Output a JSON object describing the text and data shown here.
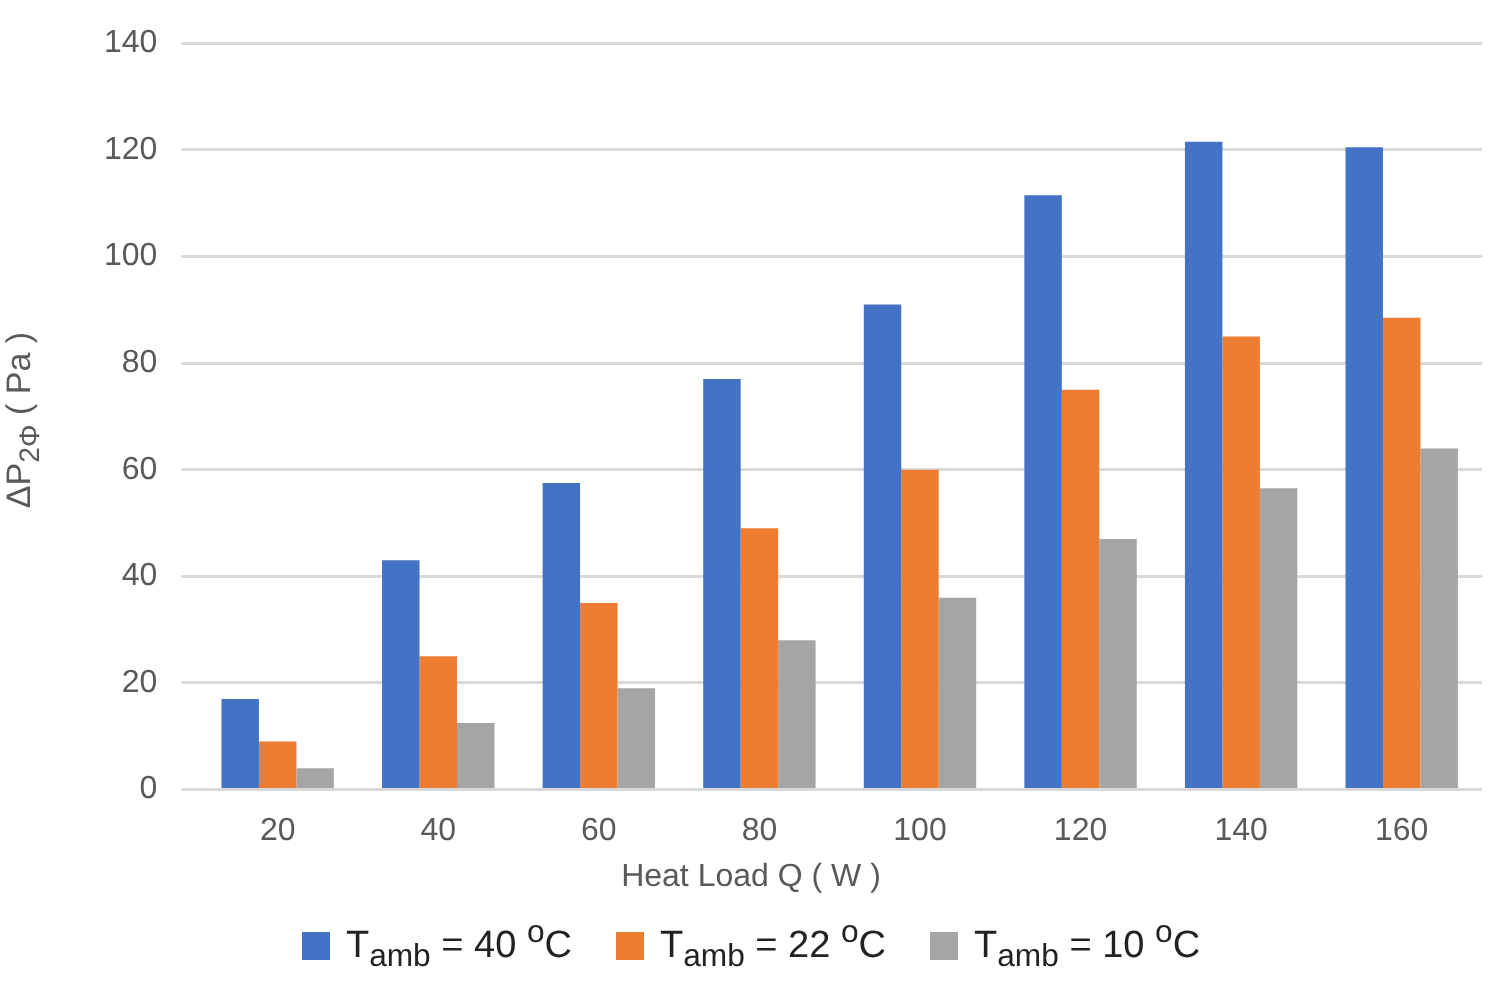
{
  "chart_data": {
    "type": "bar",
    "xlabel": "Heat Load Q ( W )",
    "ylabel": "ΔP$_{2Φ}$ ( Pa )",
    "categories": [
      "20",
      "40",
      "60",
      "80",
      "100",
      "120",
      "140",
      "160"
    ],
    "series": [
      {
        "name": "T$_{amb}$ = 40 $^{o}$C",
        "color": "#4472c4",
        "values": [
          17,
          43,
          57.5,
          77,
          91,
          111.5,
          121.5,
          120.5
        ]
      },
      {
        "name": "T$_{amb}$ = 22 $^{o}$C",
        "color": "#ed7d31",
        "values": [
          9,
          25,
          35,
          49,
          60,
          75,
          85,
          88.5
        ]
      },
      {
        "name": "T$_{amb}$ = 10 $^{o}$C",
        "color": "#a5a5a5",
        "values": [
          4,
          12.5,
          19,
          28,
          36,
          47,
          56.5,
          64
        ]
      }
    ],
    "ylim": [
      0,
      140
    ],
    "yticks": [
      0,
      20,
      40,
      60,
      80,
      100,
      120,
      140
    ],
    "grid": "y",
    "legend": "bottom"
  }
}
